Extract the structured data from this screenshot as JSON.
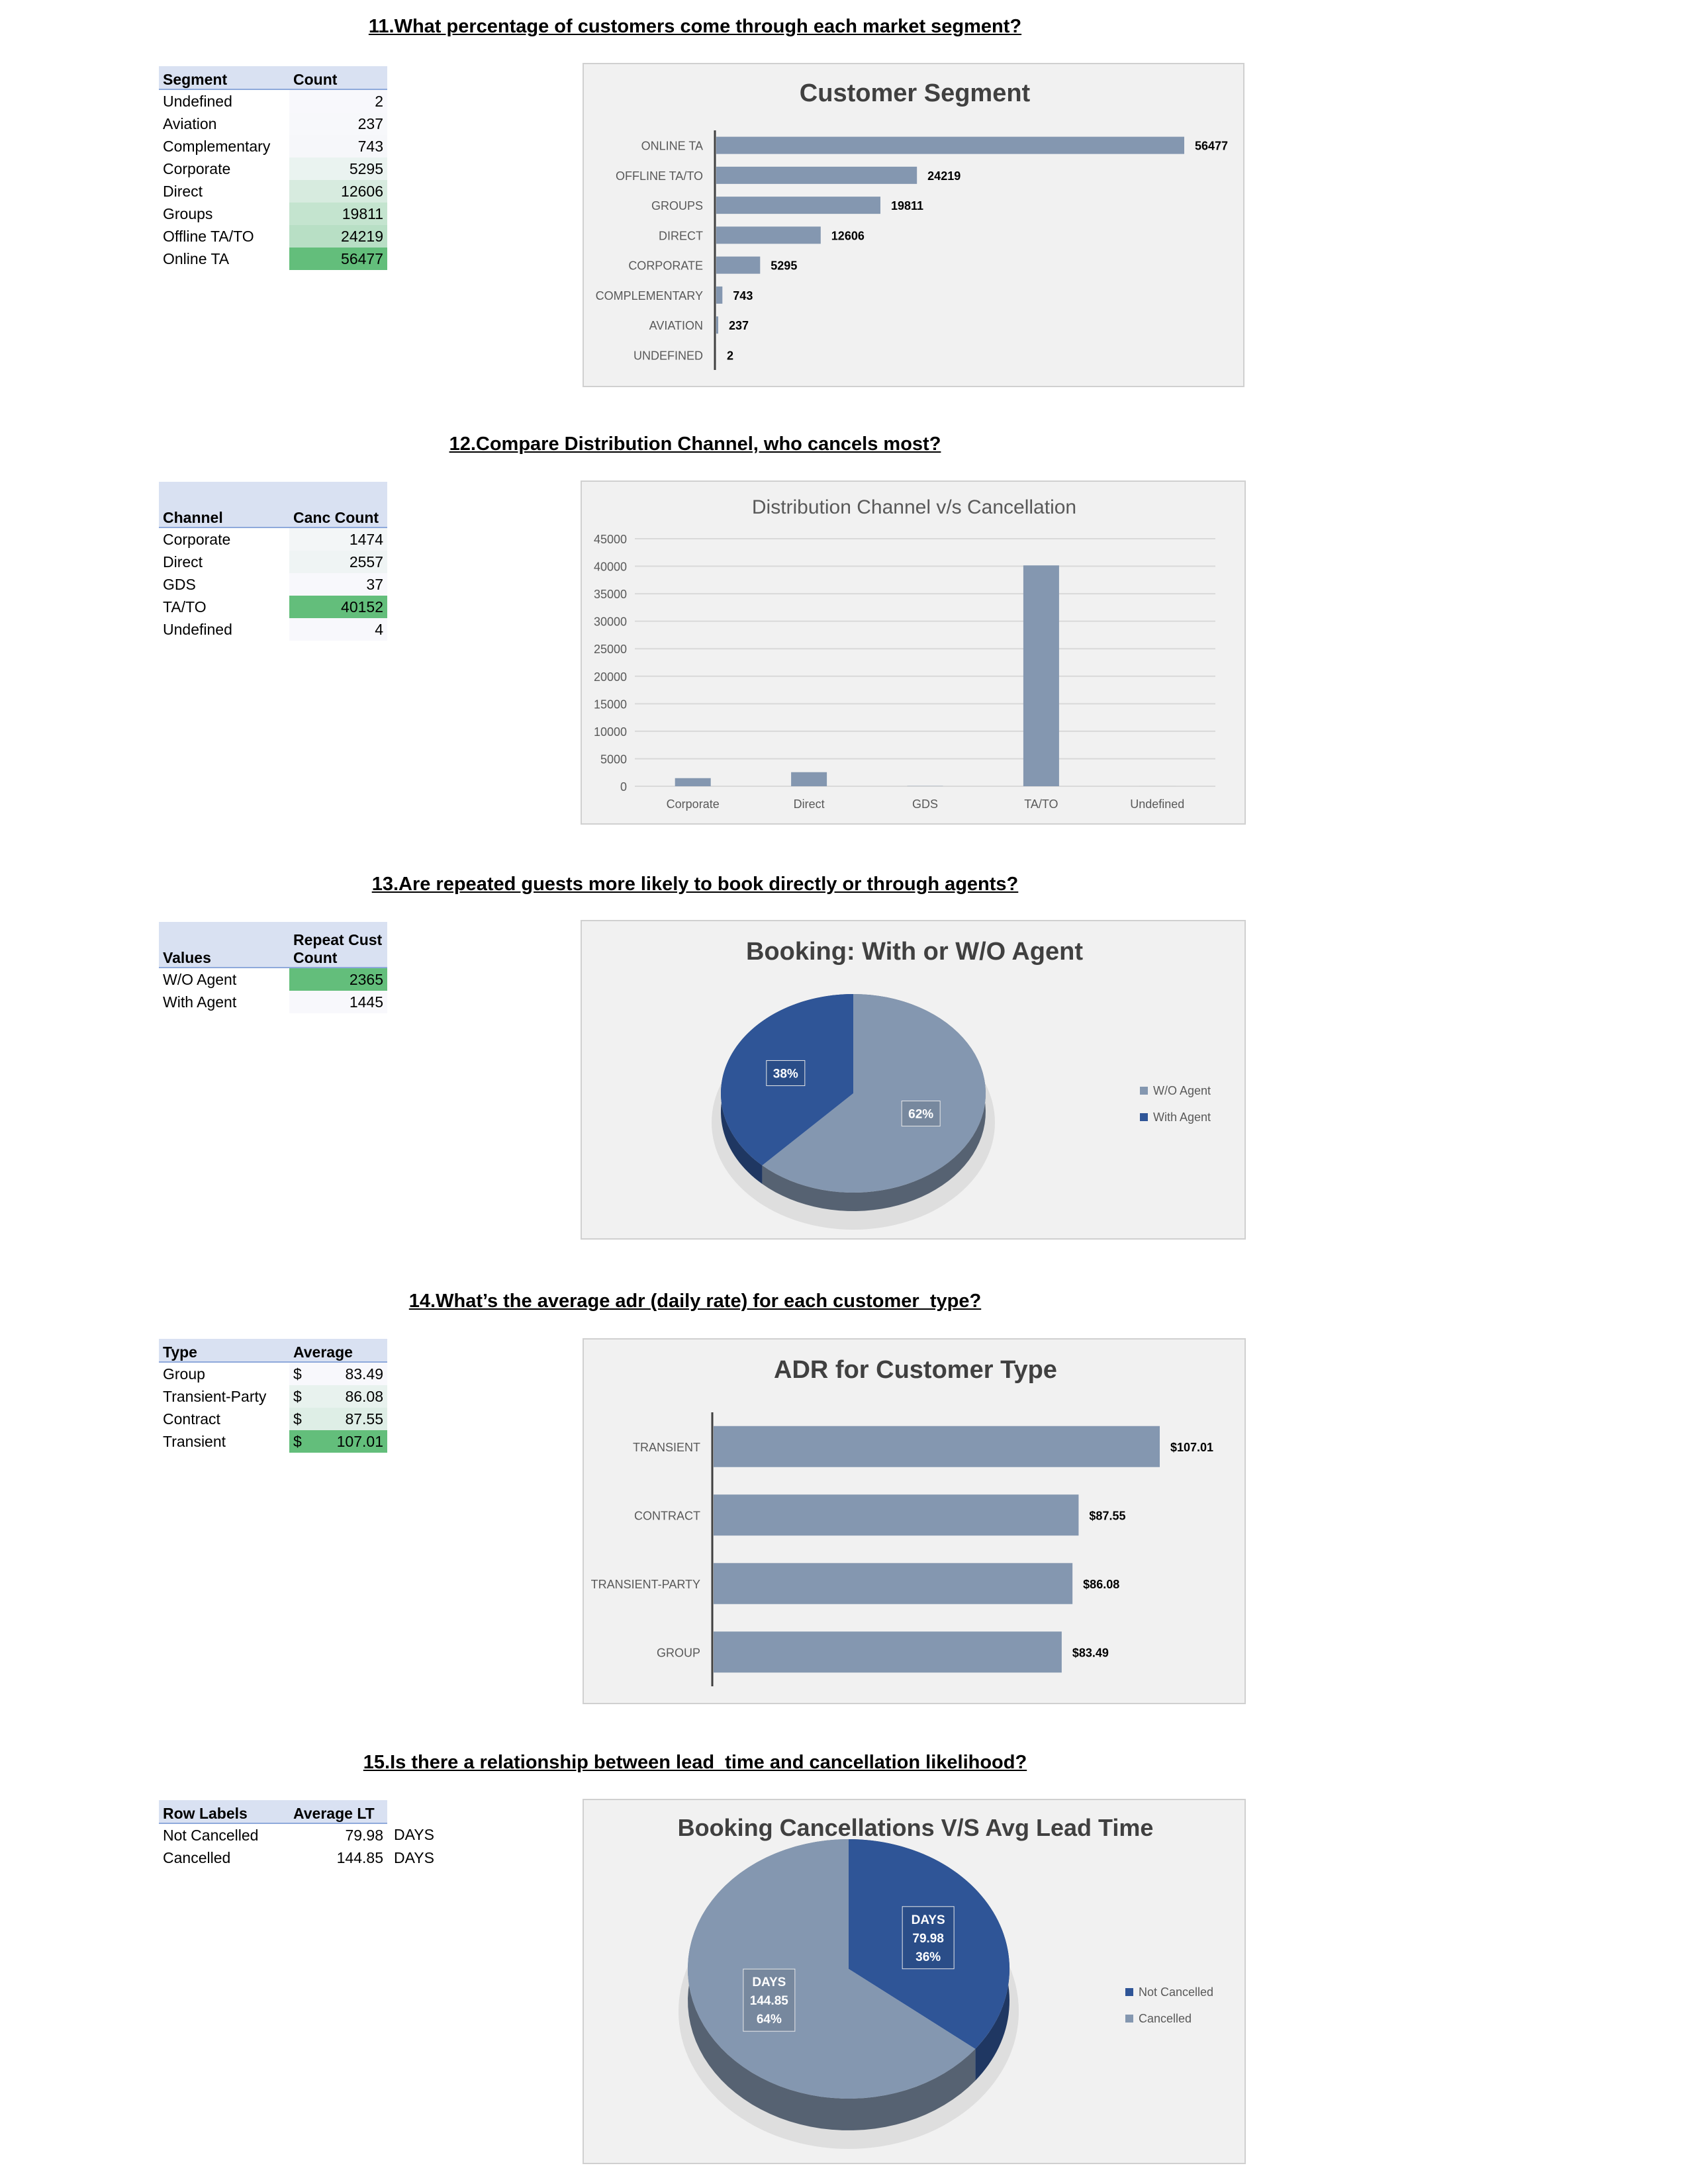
{
  "sections": [
    {
      "question": "11.What percentage of customers come through each market segment?",
      "table": {
        "headers": [
          "Segment",
          "Count"
        ],
        "rows": [
          [
            "Undefined",
            "2"
          ],
          [
            "Aviation",
            "237"
          ],
          [
            "Complementary",
            "743"
          ],
          [
            "Corporate",
            "5295"
          ],
          [
            "Direct",
            "12606"
          ],
          [
            "Groups",
            "19811"
          ],
          [
            "Offline TA/TO",
            "24219"
          ],
          [
            "Online TA",
            "56477"
          ]
        ]
      }
    },
    {
      "question": "12.Compare Distribution Channel, who cancels most?",
      "table": {
        "headers": [
          "Channel",
          "Canc Count"
        ],
        "rows": [
          [
            "Corporate",
            "1474"
          ],
          [
            "Direct",
            "2557"
          ],
          [
            "GDS",
            "37"
          ],
          [
            "TA/TO",
            "40152"
          ],
          [
            "Undefined",
            "4"
          ]
        ]
      }
    },
    {
      "question": "13.Are repeated guests more likely to book directly or through agents?",
      "table": {
        "headers": [
          "Values",
          "Repeat Cust",
          "Count"
        ],
        "rows": [
          [
            "W/O Agent",
            "2365"
          ],
          [
            "With Agent",
            "1445"
          ]
        ]
      }
    },
    {
      "question": "14.What’s the average adr (daily rate) for each customer_type?",
      "table": {
        "headers": [
          "Type",
          "Average"
        ],
        "rows": [
          [
            "Group",
            "$",
            "83.49"
          ],
          [
            "Transient-Party",
            "$",
            "86.08"
          ],
          [
            "Contract",
            "$",
            "87.55"
          ],
          [
            "Transient",
            "$",
            "107.01"
          ]
        ]
      }
    },
    {
      "question": "15.Is there a relationship between lead_time and cancellation likelihood?",
      "table": {
        "headers": [
          "Row Labels",
          "Average LT"
        ],
        "rows": [
          [
            "Not Cancelled",
            "79.98",
            "DAYS"
          ],
          [
            "Cancelled",
            "144.85",
            "DAYS"
          ]
        ]
      }
    }
  ],
  "colors": {
    "bar": "#8497b0",
    "dark_blue": "#2f5597",
    "heat_low": "#f8f8fc",
    "heat_high": "#63be7b",
    "header_bg": "#d9e1f2"
  },
  "chart_data": [
    {
      "type": "bar",
      "orientation": "horizontal",
      "title": "Customer Segment",
      "categories": [
        "ONLINE TA",
        "OFFLINE TA/TO",
        "GROUPS",
        "DIRECT",
        "CORPORATE",
        "COMPLEMENTARY",
        "AVIATION",
        "UNDEFINED"
      ],
      "values": [
        56477,
        24219,
        19811,
        12606,
        5295,
        743,
        237,
        2
      ],
      "data_labels": [
        "56477",
        "24219",
        "19811",
        "12606",
        "5295",
        "743",
        "237",
        "2"
      ],
      "xlim": [
        0,
        56477
      ],
      "grid": false,
      "legend": "none"
    },
    {
      "type": "bar",
      "orientation": "vertical",
      "title": "Distribution Channel v/s Cancellation",
      "categories": [
        "Corporate",
        "Direct",
        "GDS",
        "TA/TO",
        "Undefined"
      ],
      "values": [
        1474,
        2557,
        37,
        40152,
        4
      ],
      "yticks": [
        "0",
        "5000",
        "10000",
        "15000",
        "20000",
        "25000",
        "30000",
        "35000",
        "40000",
        "45000"
      ],
      "ylim": [
        0,
        45000
      ],
      "grid": true,
      "legend": "none"
    },
    {
      "type": "pie",
      "title": "Booking: With or W/O Agent",
      "labels": [
        "W/O Agent",
        "With Agent"
      ],
      "values": [
        2365,
        1445
      ],
      "data_labels": [
        "62%",
        "38%"
      ],
      "colors": [
        "#8497b0",
        "#2f5597"
      ],
      "legend": "right"
    },
    {
      "type": "bar",
      "orientation": "horizontal",
      "title": "ADR for Customer Type",
      "categories": [
        "TRANSIENT",
        "CONTRACT",
        "TRANSIENT-PARTY",
        "GROUP"
      ],
      "values": [
        107.01,
        87.55,
        86.08,
        83.49
      ],
      "data_labels": [
        "$107.01",
        "$87.55",
        "$86.08",
        "$83.49"
      ],
      "xlim": [
        0,
        107.01
      ],
      "grid": false,
      "legend": "none"
    },
    {
      "type": "pie",
      "title": "Booking Cancellations V/S Avg Lead Time",
      "labels": [
        "Not Cancelled",
        "Cancelled"
      ],
      "values": [
        79.98,
        144.85
      ],
      "data_labels": [
        [
          "DAYS",
          "79.98",
          "36%"
        ],
        [
          "DAYS",
          "144.85",
          "64%"
        ]
      ],
      "colors": [
        "#2f5597",
        "#8497b0"
      ],
      "legend": "right"
    }
  ]
}
